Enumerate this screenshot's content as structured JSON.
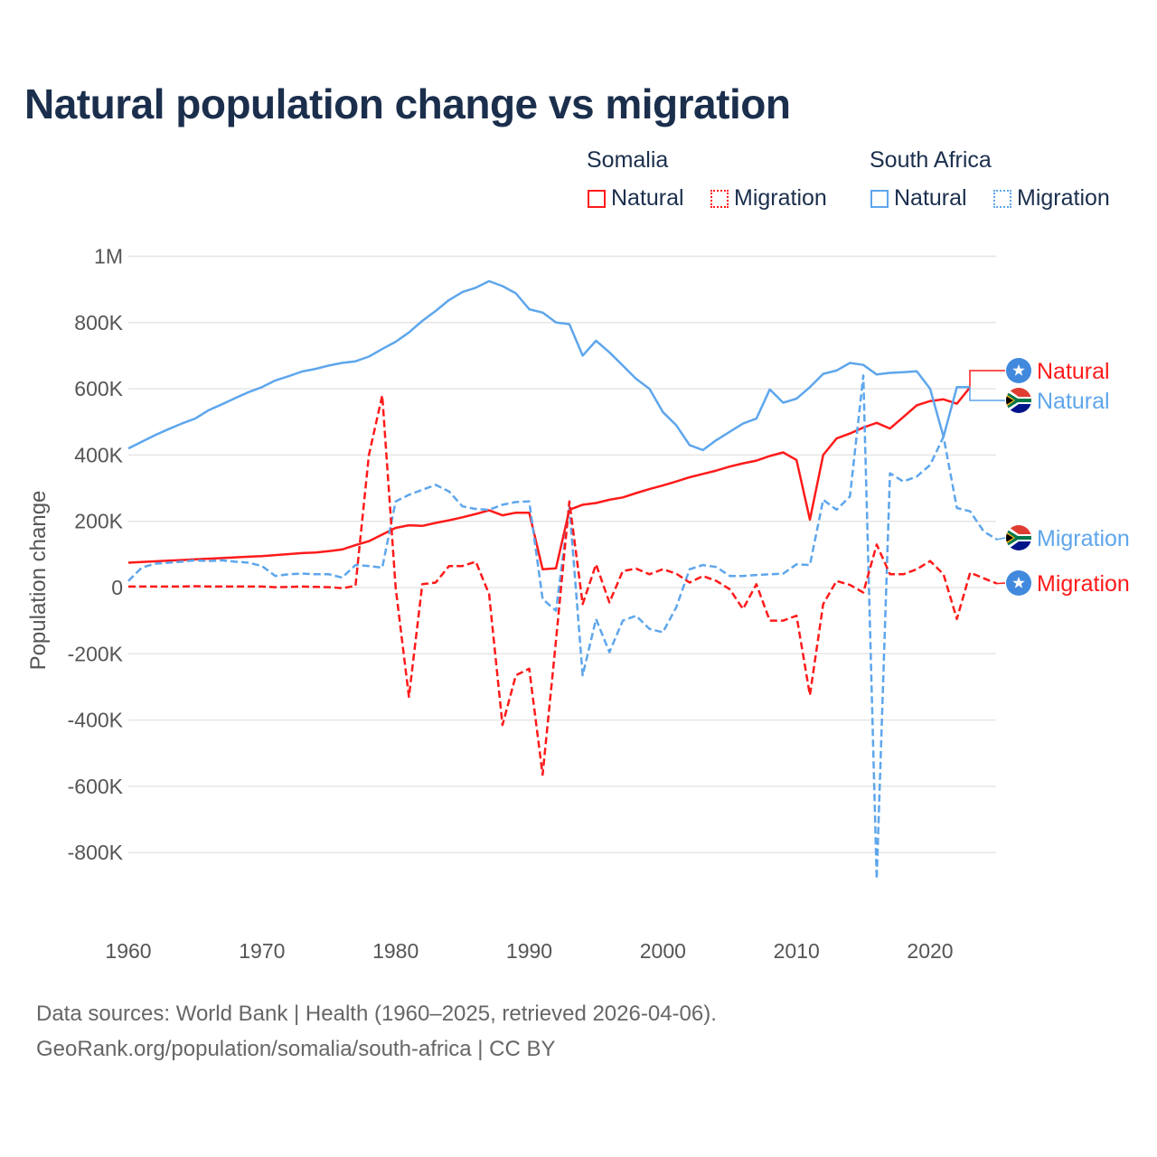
{
  "title": "Natural population change vs migration",
  "legend": {
    "groups": [
      {
        "name": "Somalia",
        "items": [
          {
            "label": "Natural",
            "style": "solid"
          },
          {
            "label": "Migration",
            "style": "dotted"
          }
        ],
        "color": "#ff1a1a"
      },
      {
        "name": "South Africa",
        "items": [
          {
            "label": "Natural",
            "style": "solid"
          },
          {
            "label": "Migration",
            "style": "dotted"
          }
        ],
        "color": "#5ea6ec"
      }
    ]
  },
  "footer": {
    "line1": "Data sources: World Bank | Health (1960–2025, retrieved 2026-04-06).",
    "line2": "GeoRank.org/population/somalia/south-africa | CC BY"
  },
  "chart_data": {
    "type": "line",
    "title": "Natural population change vs migration",
    "xlabel": "",
    "ylabel": "Population change",
    "xlim": [
      1960,
      2025
    ],
    "ylim": [
      -1000000,
      1000000
    ],
    "x_ticks": [
      1960,
      1970,
      1980,
      1990,
      2000,
      2010,
      2020
    ],
    "y_ticks": [
      {
        "value": 1000000,
        "label": "1M"
      },
      {
        "value": 800000,
        "label": "800K"
      },
      {
        "value": 600000,
        "label": "600K"
      },
      {
        "value": 400000,
        "label": "400K"
      },
      {
        "value": 200000,
        "label": "200K"
      },
      {
        "value": 0,
        "label": "0"
      },
      {
        "value": -200000,
        "label": "-200K"
      },
      {
        "value": -400000,
        "label": "-400K"
      },
      {
        "value": -600000,
        "label": "-600K"
      },
      {
        "value": -800000,
        "label": "-800K"
      }
    ],
    "grid": true,
    "series": [
      {
        "name": "Somalia Natural",
        "end_label": "Natural",
        "country": "Somalia",
        "color": "#ff1a1a",
        "dash": "solid",
        "start": 1960,
        "unit": "thousands",
        "values": [
          75,
          77,
          79,
          81,
          83,
          85,
          87,
          89,
          91,
          93,
          95,
          98,
          101,
          104,
          106,
          110,
          115,
          128,
          140,
          160,
          180,
          188,
          186,
          195,
          203,
          212,
          222,
          233,
          218,
          226,
          226,
          55,
          58,
          235,
          250,
          255,
          265,
          272,
          285,
          297,
          308,
          320,
          333,
          343,
          353,
          365,
          375,
          383,
          397,
          408,
          385,
          205,
          400,
          450,
          465,
          483,
          497,
          480,
          515,
          550,
          563,
          568,
          555,
          605
        ]
      },
      {
        "name": "South Africa Natural",
        "end_label": "Natural",
        "country": "South Africa",
        "color": "#5ea6ec",
        "dash": "solid",
        "start": 1960,
        "unit": "thousands",
        "values": [
          420,
          440,
          460,
          478,
          495,
          510,
          535,
          553,
          572,
          590,
          605,
          625,
          638,
          652,
          660,
          670,
          678,
          683,
          697,
          720,
          742,
          770,
          805,
          835,
          868,
          892,
          905,
          925,
          910,
          888,
          840,
          830,
          800,
          795,
          700,
          745,
          710,
          670,
          630,
          600,
          530,
          490,
          430,
          415,
          445,
          470,
          495,
          510,
          598,
          558,
          570,
          605,
          645,
          655,
          678,
          672,
          643,
          648,
          650,
          653,
          600,
          455,
          605,
          605
        ]
      },
      {
        "name": "South Africa Migration",
        "end_label": "Migration",
        "country": "South Africa",
        "color": "#5ea6ec",
        "dash": "dashed",
        "start": 1960,
        "unit": "thousands",
        "values": [
          20,
          60,
          72,
          75,
          78,
          82,
          80,
          82,
          78,
          75,
          65,
          35,
          40,
          42,
          40,
          40,
          30,
          68,
          65,
          60,
          260,
          280,
          295,
          310,
          290,
          245,
          237,
          235,
          250,
          258,
          260,
          -35,
          -70,
          245,
          -265,
          -95,
          -195,
          -100,
          -85,
          -125,
          -135,
          -60,
          55,
          68,
          62,
          35,
          35,
          38,
          40,
          42,
          70,
          68,
          265,
          235,
          275,
          640,
          -880,
          345,
          320,
          335,
          370,
          455,
          240,
          230,
          170,
          145
        ]
      },
      {
        "name": "Somalia Migration",
        "end_label": "Migration",
        "country": "Somalia",
        "color": "#ff1a1a",
        "dash": "dashed",
        "start": 1960,
        "unit": "thousands",
        "values": [
          3,
          3,
          3,
          3,
          3,
          4,
          3,
          3,
          3,
          3,
          3,
          1,
          2,
          3,
          2,
          1,
          -2,
          5,
          400,
          580,
          0,
          -330,
          10,
          15,
          65,
          65,
          78,
          -20,
          -415,
          -265,
          -245,
          -565,
          -160,
          260,
          -50,
          70,
          -45,
          50,
          57,
          40,
          55,
          42,
          15,
          35,
          20,
          -5,
          -65,
          10,
          -100,
          -100,
          -85,
          -325,
          -50,
          20,
          8,
          -15,
          130,
          40,
          40,
          55,
          80,
          40,
          -95,
          45,
          28,
          12
        ]
      }
    ]
  }
}
